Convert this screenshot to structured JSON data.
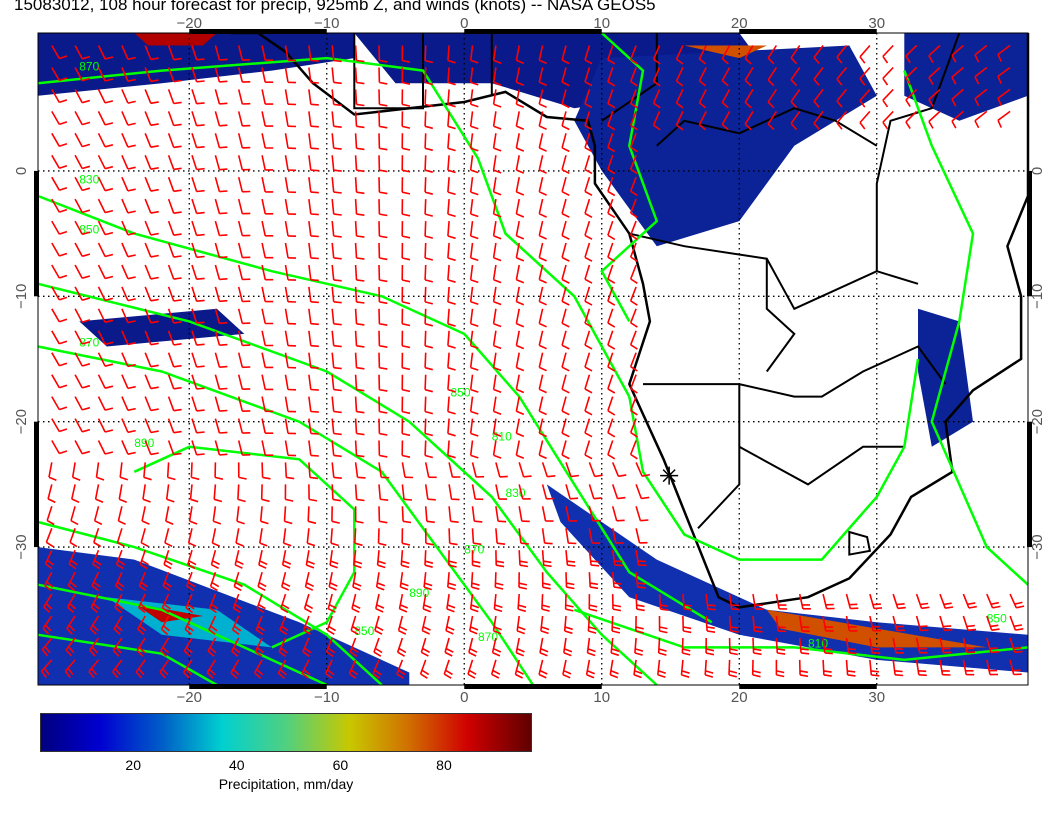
{
  "title": "15083012, 108 hour forecast for precip, 925mb Z, and winds (knots) -- NASA GEOS5",
  "map": {
    "lon_range": [
      -31,
      41
    ],
    "lat_range": [
      -41,
      11
    ],
    "lon_ticks": [
      "−20",
      "−10",
      "0",
      "10",
      "20",
      "30"
    ],
    "lon_tick_values": [
      -20,
      -10,
      0,
      10,
      20,
      30
    ],
    "lat_ticks": [
      "0",
      "−10",
      "−20",
      "−30"
    ],
    "lat_tick_values": [
      0,
      -10,
      -20,
      -30
    ],
    "colors": {
      "contour": "#00ff00",
      "wind_barbs": "#ff0000",
      "coastline": "#000000"
    },
    "contour_labels": [
      "870",
      "830",
      "850",
      "870",
      "890",
      "850",
      "810",
      "830",
      "870",
      "850",
      "890",
      "870",
      "810",
      "850"
    ]
  },
  "colorbar": {
    "ticks": [
      "20",
      "40",
      "60",
      "80"
    ],
    "tick_values": [
      20,
      40,
      60,
      80
    ],
    "range": [
      2,
      97
    ],
    "label": "Precipitation, mm/day",
    "colormap": [
      "#00007f",
      "#0000d0",
      "#0060c8",
      "#00d0d0",
      "#50d080",
      "#c8c800",
      "#d07000",
      "#d00000",
      "#600000"
    ]
  }
}
